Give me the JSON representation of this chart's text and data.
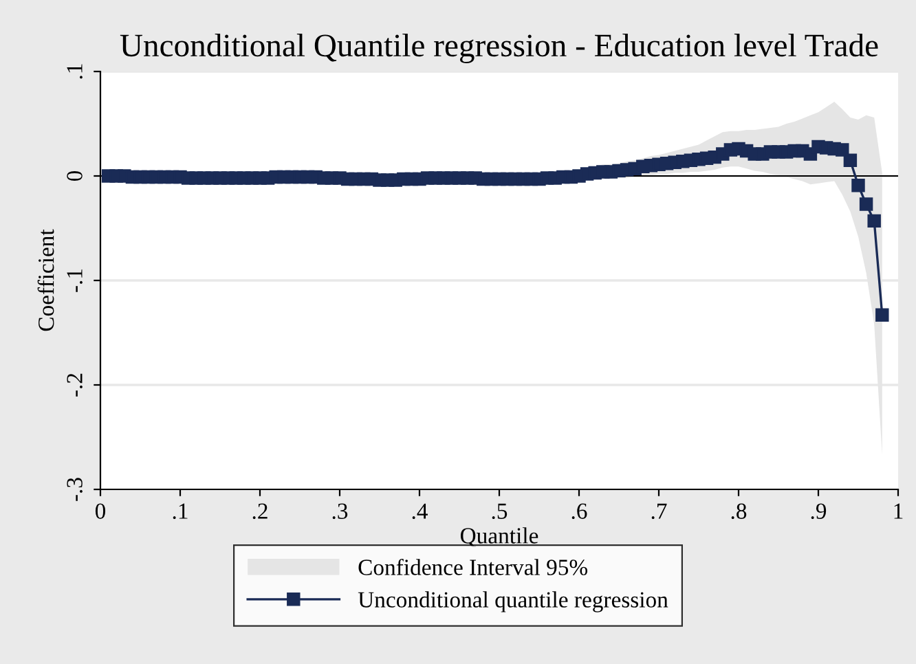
{
  "chart_data": {
    "type": "line",
    "title": "Unconditional Quantile regression - Education level Trade",
    "xlabel": "Quantile",
    "ylabel": "Coefficient",
    "xlim": [
      0,
      1
    ],
    "ylim": [
      -0.3,
      0.1
    ],
    "xticks": [
      0,
      {
        "value": 0.1,
        "label": ".1"
      },
      {
        "value": 0.2,
        "label": ".2"
      },
      {
        "value": 0.3,
        "label": ".3"
      },
      {
        "value": 0.4,
        "label": ".4"
      },
      {
        "value": 0.5,
        "label": ".5"
      },
      {
        "value": 0.6,
        "label": ".6"
      },
      {
        "value": 0.7,
        "label": ".7"
      },
      {
        "value": 0.8,
        "label": ".8"
      },
      {
        "value": 0.9,
        "label": ".9"
      },
      1
    ],
    "yticks": [
      {
        "value": -0.3,
        "label": "-.3"
      },
      {
        "value": -0.2,
        "label": "-.2"
      },
      {
        "value": -0.1,
        "label": "-.1"
      },
      0,
      {
        "value": 0.1,
        "label": ".1"
      }
    ],
    "grid": "y",
    "legend": "bottom",
    "ref_lines": [
      {
        "axis": "y",
        "value": 0,
        "color": "#000000"
      }
    ],
    "series": [
      {
        "name": "Confidence Interval 95%",
        "type": "area",
        "color": "#e5e5e5",
        "x": [
          0.01,
          0.02,
          0.03,
          0.04,
          0.05,
          0.06,
          0.07,
          0.08,
          0.09,
          0.1,
          0.11,
          0.12,
          0.13,
          0.14,
          0.15,
          0.16,
          0.17,
          0.18,
          0.19,
          0.2,
          0.21,
          0.22,
          0.23,
          0.24,
          0.25,
          0.26,
          0.27,
          0.28,
          0.29,
          0.3,
          0.31,
          0.32,
          0.33,
          0.34,
          0.35,
          0.36,
          0.37,
          0.38,
          0.39,
          0.4,
          0.41,
          0.42,
          0.43,
          0.44,
          0.45,
          0.46,
          0.47,
          0.48,
          0.49,
          0.5,
          0.51,
          0.52,
          0.53,
          0.54,
          0.55,
          0.56,
          0.57,
          0.58,
          0.59,
          0.6,
          0.61,
          0.62,
          0.63,
          0.64,
          0.65,
          0.66,
          0.67,
          0.68,
          0.69,
          0.7,
          0.71,
          0.72,
          0.73,
          0.74,
          0.75,
          0.76,
          0.77,
          0.78,
          0.79,
          0.8,
          0.81,
          0.82,
          0.83,
          0.84,
          0.85,
          0.86,
          0.87,
          0.88,
          0.89,
          0.9,
          0.91,
          0.92,
          0.93,
          0.94,
          0.95,
          0.96,
          0.97,
          0.98
        ],
        "values": [
          null,
          null,
          null,
          null,
          null,
          null,
          null,
          null,
          null,
          null,
          null,
          null,
          null,
          null,
          null,
          null,
          null,
          null,
          null,
          null,
          null,
          null,
          null,
          null,
          null,
          null,
          null,
          null,
          null,
          null,
          null,
          null,
          null,
          null,
          null,
          null,
          null,
          null,
          null,
          null,
          null,
          null,
          null,
          null,
          null,
          null,
          null,
          null,
          null,
          null,
          null,
          null,
          null,
          null,
          null,
          null,
          null,
          null,
          null,
          null,
          null,
          null,
          null,
          null,
          null,
          null,
          null,
          null,
          null,
          null,
          null,
          null,
          null,
          null,
          null,
          null,
          null,
          null,
          null,
          null,
          null,
          null,
          null,
          null,
          null,
          null,
          null,
          null,
          null,
          null,
          null,
          null,
          null,
          null,
          null,
          null,
          null,
          null
        ],
        "lower": [
          -0.002,
          -0.002,
          -0.002,
          -0.003,
          -0.003,
          -0.003,
          -0.003,
          -0.003,
          -0.003,
          -0.003,
          -0.004,
          -0.004,
          -0.004,
          -0.004,
          -0.004,
          -0.004,
          -0.004,
          -0.004,
          -0.004,
          -0.004,
          -0.004,
          -0.003,
          -0.003,
          -0.003,
          -0.003,
          -0.003,
          -0.003,
          -0.004,
          -0.004,
          -0.004,
          -0.005,
          -0.005,
          -0.005,
          -0.005,
          -0.006,
          -0.006,
          -0.006,
          -0.005,
          -0.005,
          -0.005,
          -0.004,
          -0.004,
          -0.004,
          -0.004,
          -0.004,
          -0.004,
          -0.004,
          -0.005,
          -0.005,
          -0.005,
          -0.007,
          -0.007,
          -0.007,
          -0.007,
          -0.007,
          -0.006,
          -0.006,
          -0.005,
          -0.005,
          -0.004,
          -0.004,
          -0.003,
          -0.003,
          -0.003,
          -0.002,
          -0.002,
          -0.001,
          0,
          0.001,
          0.002,
          0.002,
          0.003,
          0.003,
          0.004,
          0.004,
          0.005,
          0.006,
          0.008,
          0.009,
          0.009,
          0.007,
          0.005,
          0.004,
          0.002,
          0.001,
          -0.001,
          -0.003,
          -0.005,
          -0.008,
          -0.007,
          -0.006,
          -0.005,
          -0.018,
          -0.034,
          -0.058,
          -0.093,
          -0.142,
          -0.267
        ],
        "upper": [
          0.002,
          0.002,
          0.002,
          0.001,
          0.001,
          0.001,
          0.001,
          0.001,
          0.001,
          0.001,
          0,
          0,
          0,
          0,
          0,
          0,
          0,
          0,
          0,
          0,
          0,
          0.001,
          0.001,
          0.001,
          0.001,
          0.001,
          0.001,
          0,
          0,
          0,
          -0.001,
          -0.001,
          -0.001,
          -0.001,
          -0.002,
          -0.002,
          -0.002,
          -0.001,
          -0.001,
          -0.001,
          0,
          0,
          0,
          0,
          0,
          0,
          0,
          -0.001,
          -0.001,
          -0.001,
          0.001,
          0.001,
          0.001,
          0.001,
          0.001,
          0.002,
          0.002,
          0.003,
          0.003,
          0.004,
          0.008,
          0.009,
          0.011,
          0.011,
          0.012,
          0.014,
          0.015,
          0.017,
          0.019,
          0.02,
          0.022,
          0.024,
          0.026,
          0.028,
          0.03,
          0.034,
          0.038,
          0.042,
          0.043,
          0.043,
          0.044,
          0.044,
          0.045,
          0.046,
          0.047,
          0.05,
          0.052,
          0.055,
          0.058,
          0.061,
          0.066,
          0.071,
          0.064,
          0.056,
          0.054,
          0.058,
          0.056,
          0.003
        ]
      },
      {
        "name": "Unconditional quantile regression",
        "color": "#1a2b56",
        "marker": "square",
        "line_style": "solid",
        "x": [
          0.01,
          0.02,
          0.03,
          0.04,
          0.05,
          0.06,
          0.07,
          0.08,
          0.09,
          0.1,
          0.11,
          0.12,
          0.13,
          0.14,
          0.15,
          0.16,
          0.17,
          0.18,
          0.19,
          0.2,
          0.21,
          0.22,
          0.23,
          0.24,
          0.25,
          0.26,
          0.27,
          0.28,
          0.29,
          0.3,
          0.31,
          0.32,
          0.33,
          0.34,
          0.35,
          0.36,
          0.37,
          0.38,
          0.39,
          0.4,
          0.41,
          0.42,
          0.43,
          0.44,
          0.45,
          0.46,
          0.47,
          0.48,
          0.49,
          0.5,
          0.51,
          0.52,
          0.53,
          0.54,
          0.55,
          0.56,
          0.57,
          0.58,
          0.59,
          0.6,
          0.61,
          0.62,
          0.63,
          0.64,
          0.65,
          0.66,
          0.67,
          0.68,
          0.69,
          0.7,
          0.71,
          0.72,
          0.73,
          0.74,
          0.75,
          0.76,
          0.77,
          0.78,
          0.79,
          0.8,
          0.81,
          0.82,
          0.83,
          0.84,
          0.85,
          0.86,
          0.87,
          0.88,
          0.89,
          0.9,
          0.91,
          0.92,
          0.93,
          0.94,
          0.95,
          0.96,
          0.97,
          0.98
        ],
        "values": [
          0,
          0,
          0,
          -0.001,
          -0.001,
          -0.001,
          -0.001,
          -0.001,
          -0.001,
          -0.001,
          -0.002,
          -0.002,
          -0.002,
          -0.002,
          -0.002,
          -0.002,
          -0.002,
          -0.002,
          -0.002,
          -0.002,
          -0.002,
          -0.001,
          -0.001,
          -0.001,
          -0.001,
          -0.001,
          -0.001,
          -0.002,
          -0.002,
          -0.002,
          -0.003,
          -0.003,
          -0.003,
          -0.003,
          -0.004,
          -0.004,
          -0.004,
          -0.003,
          -0.003,
          -0.003,
          -0.002,
          -0.002,
          -0.002,
          -0.002,
          -0.002,
          -0.002,
          -0.002,
          -0.003,
          -0.003,
          -0.003,
          -0.003,
          -0.003,
          -0.003,
          -0.003,
          -0.003,
          -0.002,
          -0.002,
          -0.001,
          -0.001,
          0,
          0.002,
          0.003,
          0.004,
          0.004,
          0.005,
          0.006,
          0.007,
          0.009,
          0.01,
          0.011,
          0.012,
          0.013,
          0.014,
          0.015,
          0.016,
          0.017,
          0.018,
          0.021,
          0.025,
          0.026,
          0.024,
          0.021,
          0.021,
          0.023,
          0.023,
          0.023,
          0.024,
          0.024,
          0.021,
          0.028,
          0.027,
          0.026,
          0.025,
          0.015,
          -0.009,
          -0.027,
          -0.043,
          -0.133
        ]
      }
    ]
  }
}
